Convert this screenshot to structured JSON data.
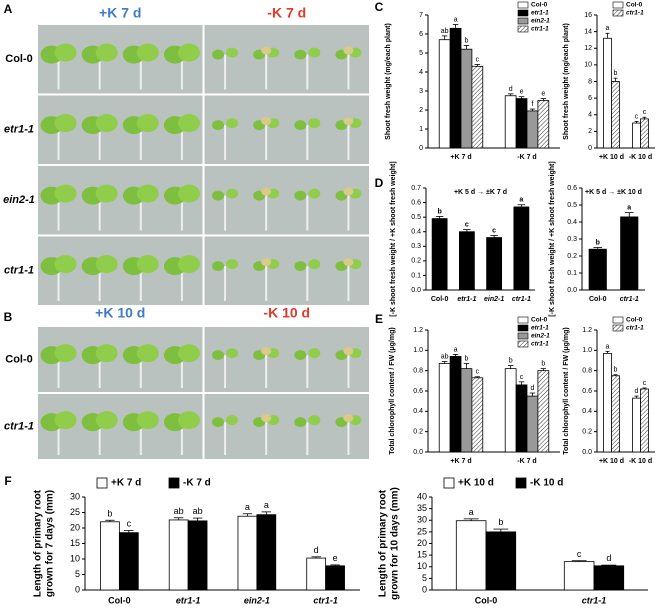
{
  "panel_labels": [
    "A",
    "B",
    "C",
    "D",
    "E",
    "F"
  ],
  "photo_panels": [
    {
      "columns": [
        "+K 7 d",
        "-K 7 d"
      ],
      "rows": [
        "Col-0",
        "etr1-1",
        "ein2-1",
        "ctr1-1"
      ]
    },
    {
      "columns": [
        "+K 10 d",
        "-K 10 d"
      ],
      "rows": [
        "Col-0",
        "ctr1-1"
      ]
    }
  ],
  "chart_data": [
    {
      "type": "bar",
      "ylabel": "Shoot fresh weight (mg/each plant)",
      "categories": [
        "+K 7 d",
        "-K 7 d"
      ],
      "series": [
        {
          "name": "Col-0",
          "color": "#ffffff",
          "values": [
            5.7,
            2.75
          ],
          "errors": [
            0.2,
            0.1
          ],
          "letters": [
            "ab",
            "d"
          ]
        },
        {
          "name": "etr1-1",
          "color": "#000000",
          "values": [
            6.3,
            2.6
          ],
          "errors": [
            0.2,
            0.1
          ],
          "letters": [
            "a",
            "e"
          ]
        },
        {
          "name": "ein2-1",
          "color": "#999999",
          "values": [
            5.2,
            1.95
          ],
          "errors": [
            0.2,
            0.1
          ],
          "letters": [
            "b",
            "f"
          ]
        },
        {
          "name": "ctr1-1",
          "color": "#ffffff",
          "hatch": true,
          "values": [
            4.3,
            2.5
          ],
          "errors": [
            0.1,
            0.1
          ],
          "letters": [
            "c",
            "e"
          ]
        }
      ],
      "ylim": [
        0,
        7
      ],
      "yticks": [
        0,
        1,
        2,
        3,
        4,
        5,
        6,
        7
      ],
      "legend": "upper right"
    },
    {
      "type": "bar",
      "ylabel": "Shoot fresh weight (mg/each plant)",
      "categories": [
        "+K 10 d",
        "-K 10 d"
      ],
      "series": [
        {
          "name": "Col-0",
          "color": "#ffffff",
          "values": [
            13.2,
            3.0
          ],
          "errors": [
            0.6,
            0.2
          ],
          "letters": [
            "a",
            "c"
          ]
        },
        {
          "name": "ctr1-1",
          "color": "#ffffff",
          "hatch": true,
          "values": [
            8.0,
            3.5
          ],
          "errors": [
            0.4,
            0.2
          ],
          "letters": [
            "b",
            "c"
          ]
        }
      ],
      "ylim": [
        0,
        16
      ],
      "yticks": [
        0,
        2,
        4,
        6,
        8,
        10,
        12,
        14,
        16
      ],
      "legend": "upper right"
    },
    {
      "type": "bar",
      "title": "+K 5 d → ±K 7 d",
      "ylabel": "[-K shoot fresh weight / +K shoot fresh weight]",
      "categories": [
        "Col-0",
        "etr1-1",
        "ein2-1",
        "ctr1-1"
      ],
      "color": "#000000",
      "values": [
        0.49,
        0.4,
        0.36,
        0.57
      ],
      "errors": [
        0.015,
        0.015,
        0.015,
        0.015
      ],
      "letters": [
        "b",
        "c",
        "c",
        "a"
      ],
      "ylim": [
        0,
        0.7
      ],
      "yticks": [
        {
          "value": 0,
          "label": "0.0"
        },
        0.1,
        0.2,
        0.3,
        0.4,
        0.5,
        0.6,
        0.7
      ]
    },
    {
      "type": "bar",
      "title": "+K 5 d → ±K 10 d",
      "ylabel": "[-K shoot fresh weight / +K shoot fresh weight]",
      "categories": [
        "Col-0",
        "ctr1-1"
      ],
      "color": "#000000",
      "values": [
        0.24,
        0.43
      ],
      "errors": [
        0.01,
        0.025
      ],
      "letters": [
        "b",
        "a"
      ],
      "ylim": [
        0,
        0.6
      ],
      "yticks": [
        {
          "value": 0,
          "label": "0.0"
        },
        0.1,
        0.2,
        0.3,
        0.4,
        0.5,
        0.6
      ]
    },
    {
      "type": "bar",
      "ylabel": "Total chlorophyll content / FW (μg/mg)",
      "categories": [
        "+K 7 d",
        "-K 7 d"
      ],
      "series": [
        {
          "name": "Col-0",
          "color": "#ffffff",
          "values": [
            0.87,
            0.82
          ],
          "errors": [
            0.02,
            0.03
          ],
          "letters": [
            "ab",
            "b"
          ]
        },
        {
          "name": "etr1-1",
          "color": "#000000",
          "values": [
            0.94,
            0.66
          ],
          "errors": [
            0.02,
            0.03
          ],
          "letters": [
            "a",
            "c"
          ]
        },
        {
          "name": "ein2-1",
          "color": "#999999",
          "values": [
            0.82,
            0.55
          ],
          "errors": [
            0.05,
            0.03
          ],
          "letters": [
            "b",
            "d"
          ]
        },
        {
          "name": "ctr1-1",
          "color": "#ffffff",
          "hatch": true,
          "values": [
            0.73,
            0.8
          ],
          "errors": [
            0.01,
            0.02
          ],
          "letters": [
            "c",
            "b"
          ]
        }
      ],
      "ylim": [
        0,
        1.2
      ],
      "yticks": [
        {
          "value": 0,
          "label": "0.0"
        },
        0.2,
        0.4,
        0.6,
        0.8,
        {
          "value": 1,
          "label": "1.0"
        },
        1.2
      ],
      "legend": "upper right"
    },
    {
      "type": "bar",
      "ylabel": "Total chlorophyll content / FW (μg/mg)",
      "categories": [
        "+K 10 d",
        "-K 10 d"
      ],
      "series": [
        {
          "name": "Col-0",
          "color": "#ffffff",
          "values": [
            0.97,
            0.53
          ],
          "errors": [
            0.02,
            0.02
          ],
          "letters": [
            "a",
            "d"
          ]
        },
        {
          "name": "ctr1-1",
          "color": "#ffffff",
          "hatch": true,
          "values": [
            0.75,
            0.62
          ],
          "errors": [
            0.01,
            0.01
          ],
          "letters": [
            "b",
            "c"
          ]
        }
      ],
      "ylim": [
        0,
        1.2
      ],
      "yticks": [
        {
          "value": 0,
          "label": "0.0"
        },
        0.2,
        0.4,
        0.6,
        0.8,
        {
          "value": 1,
          "label": "1.0"
        },
        1.2
      ],
      "legend": "upper right"
    },
    {
      "type": "bar",
      "ylabel": [
        "Length of primary root",
        "grown for 7 days (mm)"
      ],
      "categories": [
        "Col-0",
        "etr1-1",
        "ein2-1",
        "ctr1-1"
      ],
      "series": [
        {
          "name": "+K 7 d",
          "color": "#ffffff",
          "values": [
            22,
            22.6,
            23.8,
            10.3
          ],
          "errors": [
            0.5,
            0.7,
            0.8,
            0.4
          ],
          "letters": [
            "b",
            "ab",
            "a",
            "d"
          ]
        },
        {
          "name": "-K 7 d",
          "color": "#000000",
          "values": [
            18.5,
            22.3,
            24.3,
            7.8
          ],
          "errors": [
            0.7,
            0.9,
            0.9,
            0.3
          ],
          "letters": [
            "c",
            "ab",
            "a",
            "e"
          ]
        }
      ],
      "ylim": [
        0,
        30
      ],
      "yticks": [
        0,
        5,
        10,
        15,
        20,
        25,
        30
      ],
      "legend": "top"
    },
    {
      "type": "bar",
      "ylabel": [
        "Length of primary root",
        "grown for 10 days (mm)"
      ],
      "categories": [
        "Col-0",
        "ctr1-1"
      ],
      "series": [
        {
          "name": "+K 10 d",
          "color": "#ffffff",
          "values": [
            29.8,
            12.2
          ],
          "errors": [
            0.8,
            0.4
          ],
          "letters": [
            "a",
            "c"
          ]
        },
        {
          "name": "-K 10 d",
          "color": "#000000",
          "values": [
            25,
            10.4
          ],
          "errors": [
            1.2,
            0.3
          ],
          "letters": [
            "b",
            "d"
          ]
        }
      ],
      "ylim": [
        0,
        40
      ],
      "yticks": [
        0,
        5,
        10,
        15,
        20,
        25,
        30,
        35,
        40
      ],
      "legend": "top"
    }
  ]
}
